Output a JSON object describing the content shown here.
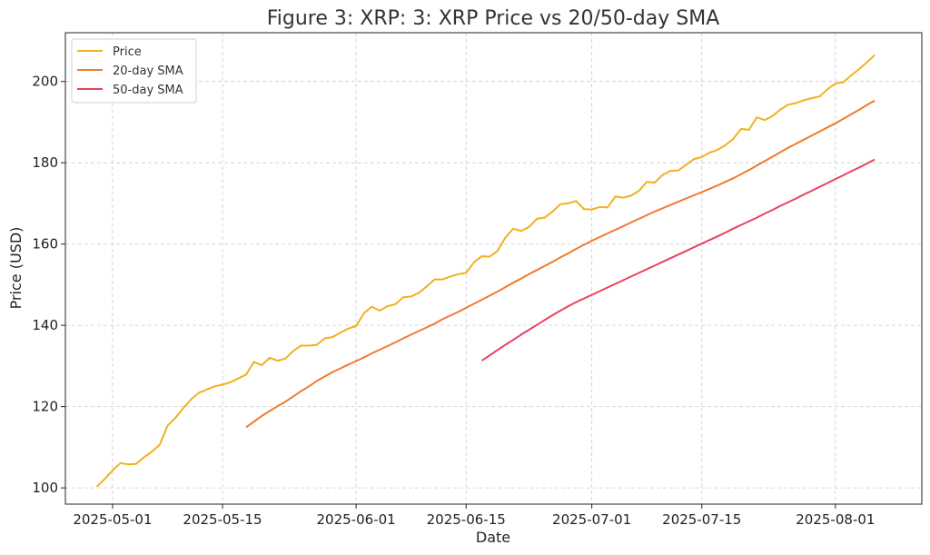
{
  "chart_data": {
    "type": "line",
    "title": "Figure 3: XRP: 3: XRP Price vs 20/50-day SMA",
    "xlabel": "Date",
    "ylabel": "Price (USD)",
    "x_start": "2025-04-29",
    "xlim": [
      "2025-04-25",
      "2025-08-12"
    ],
    "ylim": [
      96,
      212
    ],
    "x_ticks": [
      "2025-05-01",
      "2025-05-15",
      "2025-06-01",
      "2025-06-15",
      "2025-07-01",
      "2025-07-15",
      "2025-08-01"
    ],
    "y_ticks": [
      100,
      120,
      140,
      160,
      180,
      200
    ],
    "grid": true,
    "legend_position": "top-left",
    "series": [
      {
        "name": "Price",
        "color": "#f2b01e",
        "start": "2025-04-29",
        "values": [
          100.3,
          102.2,
          104.3,
          106.1,
          105.8,
          105.9,
          107.5,
          108.9,
          110.6,
          115.3,
          117.2,
          119.6,
          121.8,
          123.4,
          124.2,
          125.0,
          125.4,
          126.0,
          126.9,
          127.9,
          131.0,
          130.2,
          132.0,
          131.3,
          131.8,
          133.7,
          135.0,
          135.0,
          135.2,
          136.8,
          137.1,
          138.2,
          139.2,
          139.8,
          143.0,
          144.6,
          143.6,
          144.7,
          145.2,
          146.9,
          147.1,
          148.0,
          149.6,
          151.3,
          151.3,
          152.0,
          152.6,
          152.9,
          155.5,
          157.0,
          156.9,
          158.3,
          161.6,
          163.8,
          163.2,
          164.2,
          166.2,
          166.5,
          168.0,
          169.8,
          170.0,
          170.6,
          168.6,
          168.5,
          169.1,
          169.0,
          171.7,
          171.4,
          171.9,
          173.1,
          175.3,
          175.1,
          177.0,
          178.0,
          178.1,
          179.5,
          180.9,
          181.4,
          182.5,
          183.2,
          184.3,
          185.9,
          188.3,
          188.1,
          191.2,
          190.5,
          191.5,
          193.1,
          194.3,
          194.7,
          195.4,
          195.9,
          196.3,
          198.1,
          199.5,
          199.8,
          201.5,
          203.0,
          204.7,
          206.5
        ]
      },
      {
        "name": "20-day SMA",
        "color": "#f07b2e",
        "start": "2025-05-18",
        "values": [
          114.9,
          116.3,
          117.7,
          118.9,
          120.1,
          121.2,
          122.5,
          123.8,
          125.0,
          126.3,
          127.4,
          128.5,
          129.4,
          130.3,
          131.2,
          132.1,
          133.1,
          134.0,
          134.9,
          135.8,
          136.8,
          137.7,
          138.6,
          139.5,
          140.4,
          141.5,
          142.4,
          143.3,
          144.3,
          145.3,
          146.3,
          147.3,
          148.3,
          149.4,
          150.5,
          151.5,
          152.6,
          153.6,
          154.6,
          155.6,
          156.7,
          157.7,
          158.8,
          159.8,
          160.8,
          161.7,
          162.6,
          163.5,
          164.4,
          165.3,
          166.2,
          167.1,
          168.0,
          168.8,
          169.6,
          170.4,
          171.2,
          172.0,
          172.8,
          173.6,
          174.4,
          175.3,
          176.2,
          177.2,
          178.2,
          179.3,
          180.4,
          181.5,
          182.6,
          183.7,
          184.7,
          185.7,
          186.7,
          187.7,
          188.7,
          189.7,
          190.8,
          191.9,
          193.0,
          194.2,
          195.3
        ]
      },
      {
        "name": "50-day SMA",
        "color": "#e8425f",
        "start": "2025-06-17",
        "values": [
          131.3,
          132.6,
          133.9,
          135.2,
          136.4,
          137.7,
          138.9,
          140.1,
          141.3,
          142.5,
          143.6,
          144.7,
          145.7,
          146.6,
          147.5,
          148.4,
          149.3,
          150.2,
          151.1,
          152.0,
          152.9,
          153.8,
          154.7,
          155.6,
          156.5,
          157.4,
          158.3,
          159.2,
          160.1,
          161.0,
          161.9,
          162.8,
          163.8,
          164.7,
          165.6,
          166.5,
          167.5,
          168.4,
          169.4,
          170.3,
          171.2,
          172.2,
          173.1,
          174.1,
          175.0,
          176.0,
          176.9,
          177.9,
          178.8,
          179.8,
          180.8
        ]
      }
    ]
  }
}
